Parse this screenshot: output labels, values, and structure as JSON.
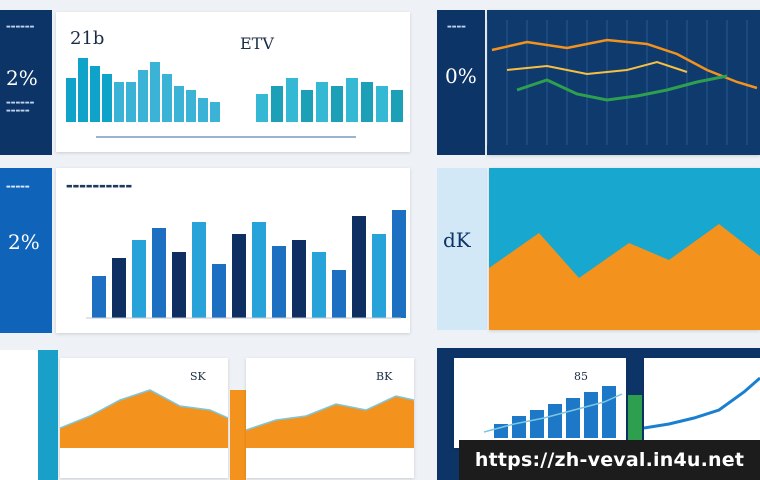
{
  "panels": {
    "top_left": {
      "kpi": "2%"
    },
    "top_left_chart": {
      "title": "21b",
      "bars": [
        0.55,
        0.8,
        0.7,
        0.6,
        0.5,
        0.5,
        0.65,
        0.75,
        0.6,
        0.45,
        0.4,
        0.3,
        0.25
      ]
    },
    "top_mid_chart": {
      "title": "ETV",
      "bars": [
        0.35,
        0.45,
        0.55,
        0.4,
        0.5,
        0.45,
        0.55,
        0.5,
        0.45,
        0.4
      ]
    },
    "top_right": {
      "kpi": "0%"
    },
    "mid_left": {
      "kpi": "2%"
    },
    "mid_chart": {
      "bars": [
        0.35,
        0.5,
        0.65,
        0.75,
        0.55,
        0.8,
        0.45,
        0.7,
        0.8,
        0.6,
        0.65,
        0.55,
        0.4,
        0.85,
        0.7,
        0.9
      ]
    },
    "mid_right": {
      "kpi": "dK"
    },
    "bottom_card_1": {
      "title": "SK"
    },
    "bottom_card_2": {
      "title": "BK"
    },
    "bottom_card_3": {
      "title": "85"
    }
  },
  "colors": {
    "navy": "#0d3466",
    "blue": "#0f63b8",
    "teal": "#18a6c6",
    "orange": "#f3931e",
    "green": "#2e9f4f"
  },
  "watermark": {
    "url": "https://zh-veval.in4u.net"
  }
}
